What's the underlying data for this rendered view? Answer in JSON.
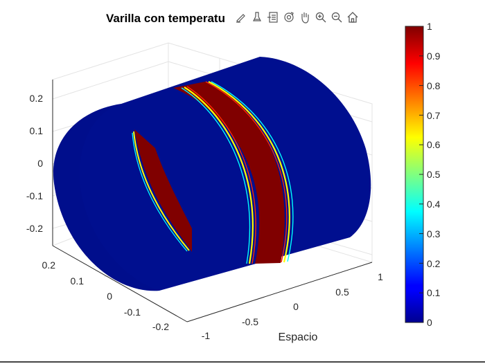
{
  "window": {
    "title": "Varilla con temperatura"
  },
  "axes": {
    "title": "Varilla con temperatu",
    "xlabel": "Espacio",
    "x_ticks": [
      "-1",
      "-0.5",
      "0",
      "0.5",
      "1"
    ],
    "y_ticks": [
      "0.2",
      "0.1",
      "0",
      "-0.1",
      "-0.2"
    ],
    "z_ticks": [
      "0.2",
      "0.1",
      "0",
      "-0.1",
      "-0.2"
    ]
  },
  "colorbar": {
    "ticks": [
      "1",
      "0.9",
      "0.8",
      "0.7",
      "0.6",
      "0.5",
      "0.4",
      "0.3",
      "0.2",
      "0.1",
      "0"
    ],
    "colormap": "jet",
    "range": [
      0,
      1
    ]
  },
  "toolbar": {
    "icons": [
      "edit-plot-icon",
      "brush-icon",
      "data-tips-icon",
      "rotate-3d-icon",
      "pan-hand-icon",
      "zoom-in-icon",
      "zoom-out-icon",
      "home-icon"
    ]
  },
  "colors": {
    "low": "#000f8f",
    "high": "#800000",
    "grid": "#e6e6e6",
    "axis": "#262626"
  },
  "chart_data": {
    "type": "surface",
    "title": "Varilla con temperatu",
    "xlabel": "Espacio",
    "ylabel": "",
    "zlabel": "",
    "xlim": [
      -1,
      1
    ],
    "ylim": [
      -0.25,
      0.25
    ],
    "zlim": [
      -0.25,
      0.25
    ],
    "clim": [
      0,
      1
    ],
    "colormap": "jet",
    "grid": true,
    "description_values": {
      "background_temperature": 0,
      "hot_band_temperature": 1
    }
  }
}
